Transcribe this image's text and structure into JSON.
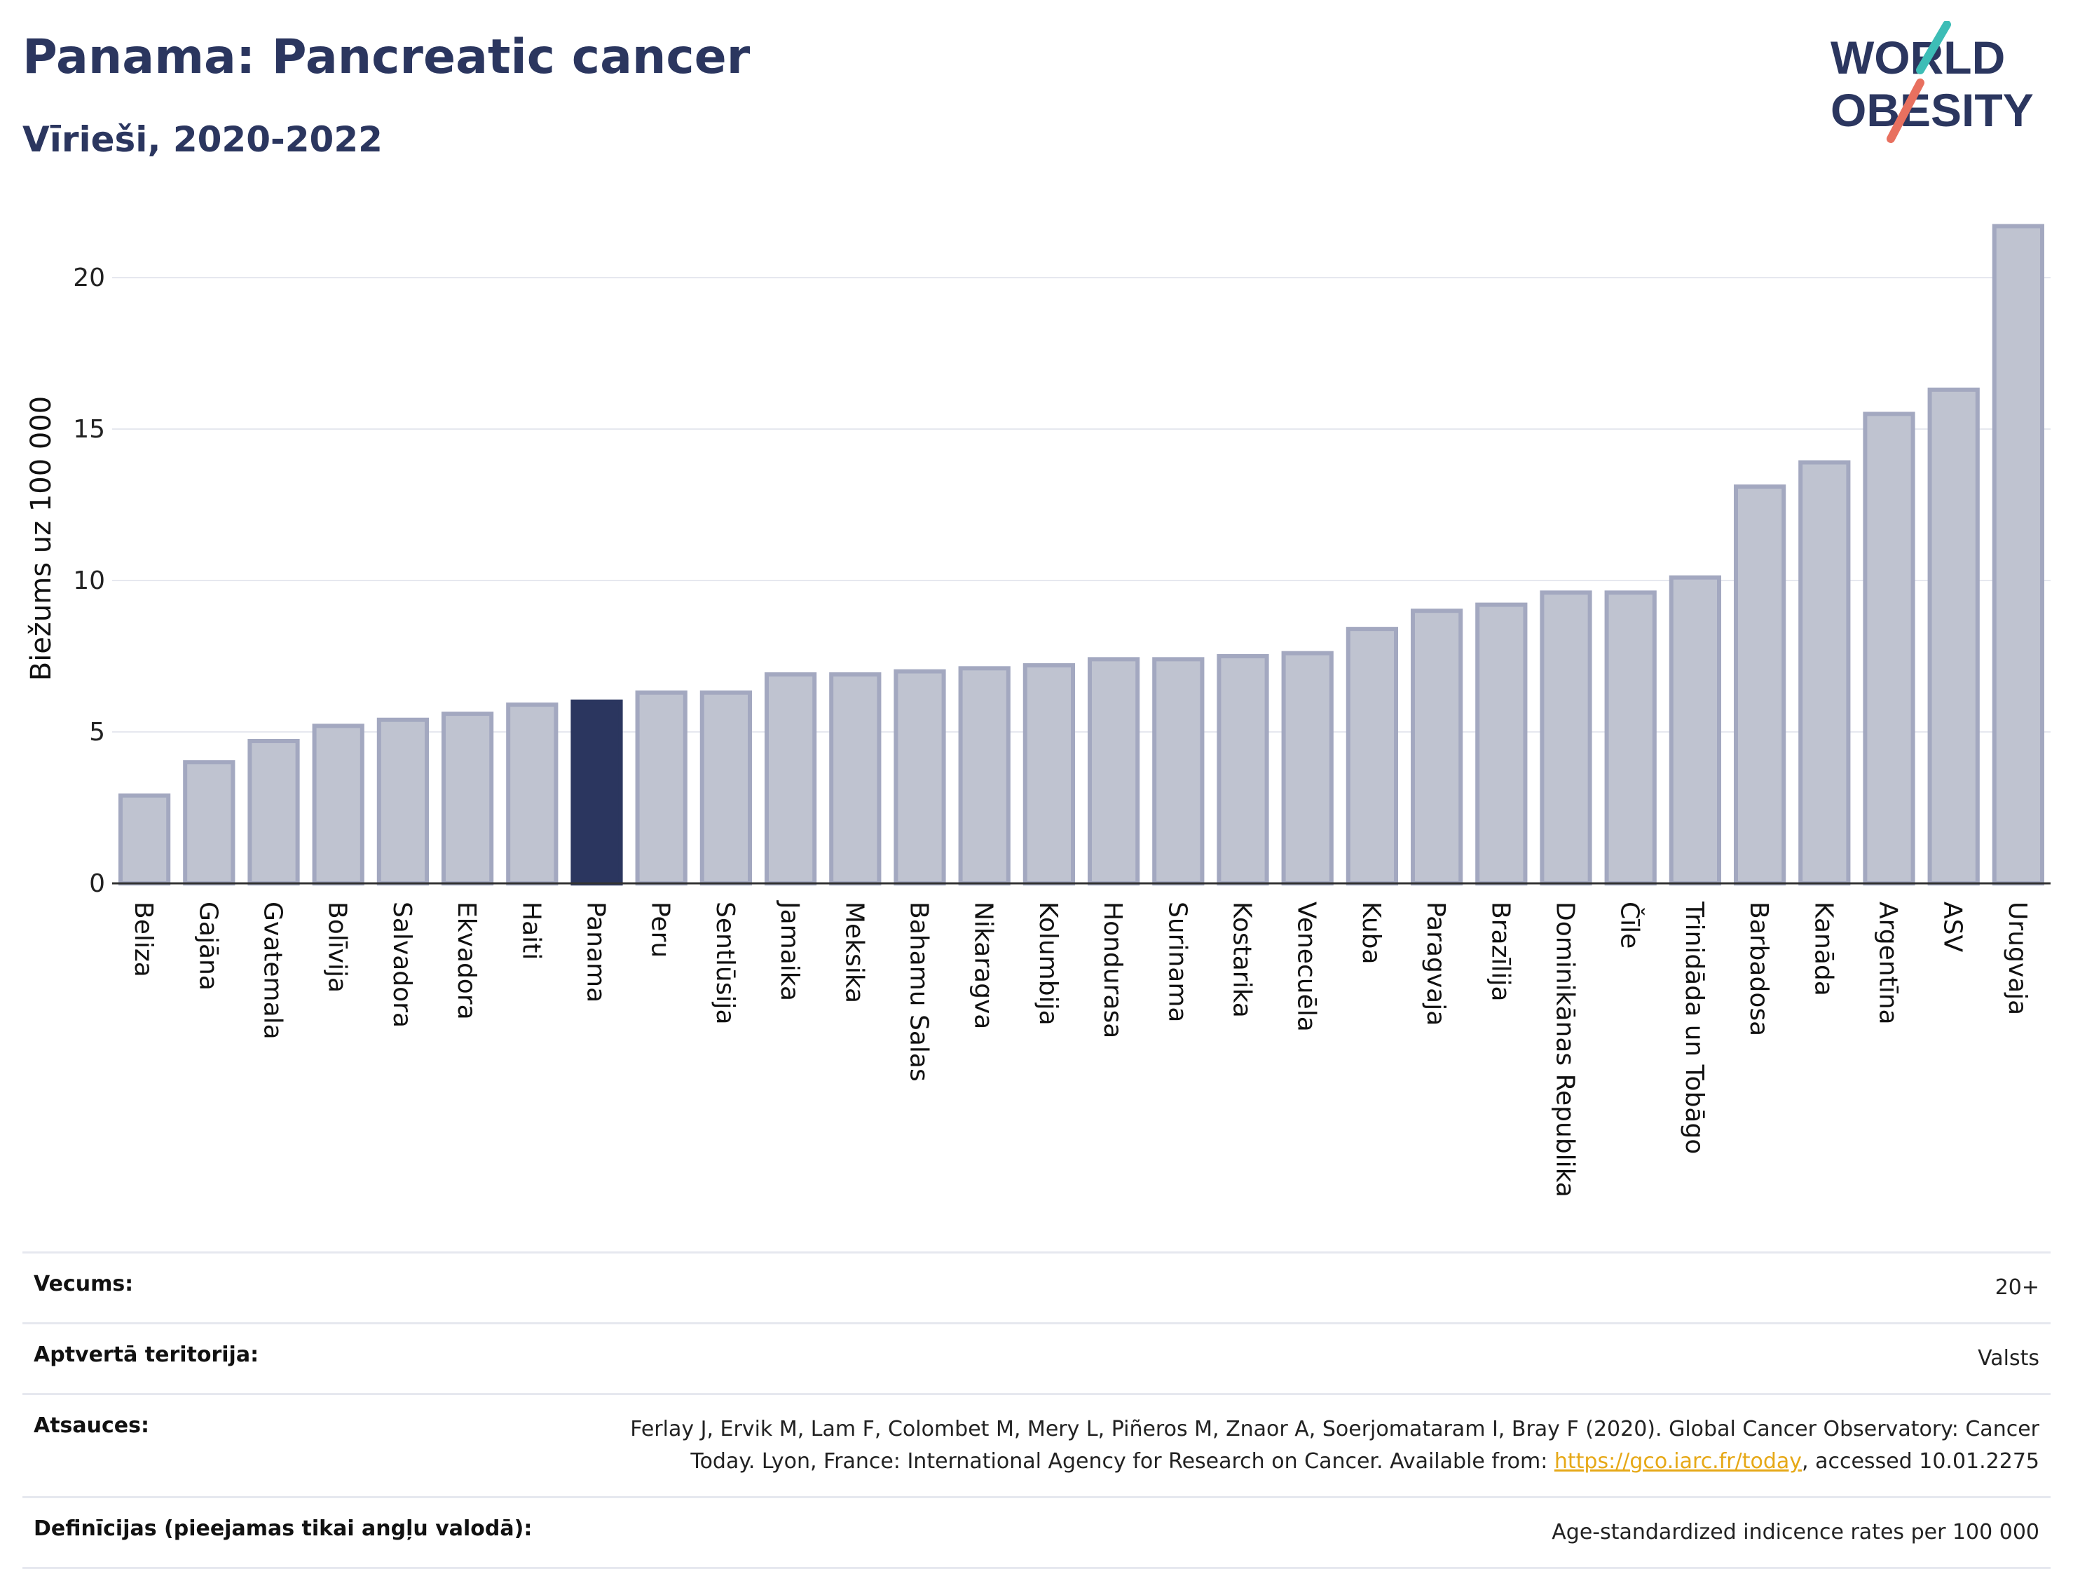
{
  "header": {
    "title": "Panama: Pancreatic cancer",
    "subtitle": "Vīrieši, 2020-2022",
    "logo_line1": "WORLD",
    "logo_line2": "OBESITY"
  },
  "colors": {
    "highlight": "#2b365f",
    "bar": "#bfc3d0",
    "bar_edge": "#a3a8c0",
    "logo_teal": "#3dbdb6",
    "logo_coral": "#e8705f"
  },
  "chart_data": {
    "type": "bar",
    "title": "Panama: Pancreatic cancer",
    "subtitle": "Vīrieši, 2020-2022",
    "xlabel": "",
    "ylabel": "Biežums uz 100 000",
    "ylim": [
      0,
      22
    ],
    "yticks": [
      0,
      5,
      10,
      15,
      20
    ],
    "grid": true,
    "highlight": "Panama",
    "categories": [
      "Beliza",
      "Gajāna",
      "Gvatemala",
      "Bolīvija",
      "Salvadora",
      "Ekvadora",
      "Haiti",
      "Panama",
      "Peru",
      "Sentlūsija",
      "Jamaika",
      "Meksika",
      "Bahamu Salas",
      "Nikaragva",
      "Kolumbija",
      "Hondurasa",
      "Surinama",
      "Kostarika",
      "Venecuēla",
      "Kuba",
      "Paragvaja",
      "Brazīlija",
      "Dominikānas Republika",
      "Čīle",
      "Trinidāda un Tobāgo",
      "Barbadosa",
      "Kanāda",
      "Argentīna",
      "ASV",
      "Urugvaja"
    ],
    "values": [
      2.9,
      4.0,
      4.7,
      5.2,
      5.4,
      5.6,
      5.9,
      6.0,
      6.3,
      6.3,
      6.9,
      6.9,
      7.0,
      7.1,
      7.2,
      7.4,
      7.4,
      7.5,
      7.6,
      8.4,
      9.0,
      9.2,
      9.6,
      9.6,
      10.1,
      13.1,
      13.9,
      15.5,
      16.3,
      21.7
    ]
  },
  "meta": {
    "age_label": "Vecums:",
    "age_value": "20+",
    "coverage_label": "Aptvertā teritorija:",
    "coverage_value": "Valsts",
    "refs_label": "Atsauces:",
    "refs_line1": "Ferlay J, Ervik M, Lam F, Colombet M, Mery L, Piñeros M, Znaor A, Soerjomataram I, Bray F (2020). Global Cancer Observatory: Cancer",
    "refs_line2_pre": "Today. Lyon, France: International Agency for Research on Cancer. Available from: ",
    "refs_link": "https://gco.iarc.fr/today",
    "refs_line2_post": ", accessed 10.01.2275",
    "defs_label": "Definīcijas (pieejamas tikai angļu valodā):",
    "defs_value": "Age-standardized indicence rates per 100 000"
  }
}
